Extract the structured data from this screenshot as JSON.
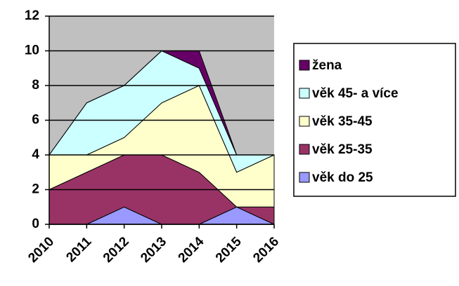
{
  "chart_data": {
    "type": "stacked_area",
    "categories": [
      "2010",
      "2011",
      "2012",
      "2013",
      "2014",
      "2015",
      "2016"
    ],
    "series": [
      {
        "name": "věk do 25",
        "color": "#9999ff",
        "values": [
          0,
          0,
          1,
          0,
          0,
          1,
          0
        ]
      },
      {
        "name": "věk 25-35",
        "color": "#993366",
        "values": [
          2,
          3,
          3,
          4,
          3,
          0,
          1
        ]
      },
      {
        "name": "věk 35-45",
        "color": "#ffffcc",
        "values": [
          2,
          1,
          1,
          3,
          5,
          2,
          3
        ]
      },
      {
        "name": "věk 45- a více",
        "color": "#ccffff",
        "values": [
          0,
          3,
          3,
          3,
          1,
          1,
          0
        ]
      },
      {
        "name": "žena",
        "color": "#660066",
        "values": [
          0,
          0,
          0,
          0,
          1,
          0,
          0
        ]
      }
    ],
    "ylim": [
      0,
      12
    ],
    "yticks": [
      0,
      2,
      4,
      6,
      8,
      10,
      12
    ],
    "grid": true,
    "legend": "right",
    "plot_background": "#c0c0c0"
  }
}
